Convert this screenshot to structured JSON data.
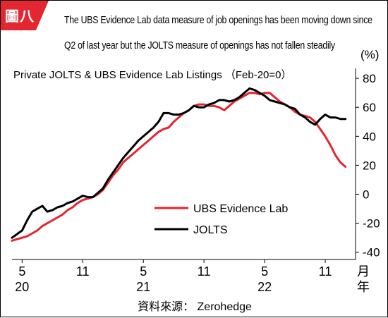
{
  "badge": {
    "label": "圖八",
    "color": "#e3262f"
  },
  "header": {
    "line1": "The UBS Evidence Lab data measure of job openings has been moving down since",
    "line2": "Q2 of last year but the JOLTS measure of openings has not fallen steadily"
  },
  "source": "資料來源： Zerohedge",
  "chart_data": {
    "type": "line",
    "title": "Private JOLTS & UBS Evidence Lab Listings （Feb-20=0）",
    "y_unit": "(%)",
    "ylim": [
      -45,
      82
    ],
    "yticks": [
      -40,
      -20,
      0,
      20,
      40,
      60,
      80
    ],
    "xlim": [
      0,
      29
    ],
    "x_tick_labels": [
      {
        "x": 0,
        "label": "5",
        "year": "20"
      },
      {
        "x": 6,
        "label": "11",
        "year": ""
      },
      {
        "x": 12,
        "label": "5",
        "year": "21"
      },
      {
        "x": 18,
        "label": "11",
        "year": ""
      },
      {
        "x": 24,
        "label": "5",
        "year": "22"
      },
      {
        "x": 30,
        "label": "11",
        "year": ""
      }
    ],
    "x_unit_label": {
      "month": "月",
      "year": "年"
    },
    "legend_position": "bottom-center",
    "series": [
      {
        "name": "UBS Evidence Lab",
        "color": "#e3262f",
        "points": [
          [
            -1,
            -32
          ],
          [
            0,
            -30
          ],
          [
            0.5,
            -29
          ],
          [
            1,
            -27
          ],
          [
            1.5,
            -25
          ],
          [
            2,
            -22
          ],
          [
            2.5,
            -20
          ],
          [
            3,
            -18
          ],
          [
            3.5,
            -16
          ],
          [
            4,
            -14
          ],
          [
            4.5,
            -11
          ],
          [
            5,
            -9
          ],
          [
            5.5,
            -6
          ],
          [
            6,
            -4
          ],
          [
            6.5,
            -3
          ],
          [
            7,
            -2
          ],
          [
            7.5,
            0
          ],
          [
            8,
            3
          ],
          [
            8.5,
            8
          ],
          [
            9,
            13
          ],
          [
            9.5,
            17
          ],
          [
            10,
            22
          ],
          [
            10.5,
            25
          ],
          [
            11,
            28
          ],
          [
            11.5,
            31
          ],
          [
            12,
            34
          ],
          [
            12.5,
            37
          ],
          [
            13,
            40
          ],
          [
            13.5,
            43
          ],
          [
            14,
            45
          ],
          [
            14.5,
            46
          ],
          [
            15,
            50
          ],
          [
            15.5,
            53
          ],
          [
            16,
            56
          ],
          [
            16.5,
            58
          ],
          [
            17,
            61
          ],
          [
            17.5,
            62
          ],
          [
            18,
            62
          ],
          [
            18.5,
            61
          ],
          [
            19,
            61
          ],
          [
            19.5,
            60
          ],
          [
            20,
            58
          ],
          [
            20.5,
            61
          ],
          [
            21,
            64
          ],
          [
            21.5,
            66
          ],
          [
            22,
            68
          ],
          [
            22.5,
            70
          ],
          [
            23,
            70
          ],
          [
            23.5,
            69
          ],
          [
            24,
            70
          ],
          [
            24.5,
            70
          ],
          [
            25,
            67
          ],
          [
            25.5,
            64
          ],
          [
            26,
            62
          ],
          [
            26.5,
            60
          ],
          [
            27,
            57
          ],
          [
            27.5,
            55
          ],
          [
            28,
            54
          ],
          [
            28.5,
            53
          ],
          [
            29,
            50
          ],
          [
            29.5,
            45
          ],
          [
            30,
            40
          ],
          [
            30.5,
            34
          ],
          [
            31,
            27
          ],
          [
            31.5,
            22
          ],
          [
            32,
            19
          ]
        ]
      },
      {
        "name": "JOLTS",
        "color": "#000000",
        "points": [
          [
            -1,
            -30
          ],
          [
            0,
            -25
          ],
          [
            0.5,
            -18
          ],
          [
            1,
            -12
          ],
          [
            1.5,
            -10
          ],
          [
            2,
            -8
          ],
          [
            2.5,
            -12
          ],
          [
            3,
            -11
          ],
          [
            3.5,
            -9
          ],
          [
            4,
            -8
          ],
          [
            4.5,
            -6
          ],
          [
            5,
            -5
          ],
          [
            5.5,
            -3
          ],
          [
            6,
            -1
          ],
          [
            6.5,
            -2
          ],
          [
            7,
            -2
          ],
          [
            7.5,
            1
          ],
          [
            8,
            4
          ],
          [
            8.5,
            10
          ],
          [
            9,
            15
          ],
          [
            9.5,
            20
          ],
          [
            10,
            25
          ],
          [
            10.5,
            29
          ],
          [
            11,
            33
          ],
          [
            11.5,
            37
          ],
          [
            12,
            40
          ],
          [
            12.5,
            43
          ],
          [
            13,
            46
          ],
          [
            13.5,
            50
          ],
          [
            14,
            56
          ],
          [
            14.5,
            56
          ],
          [
            15,
            55
          ],
          [
            15.5,
            55
          ],
          [
            16,
            56
          ],
          [
            16.5,
            58
          ],
          [
            17,
            61
          ],
          [
            17.5,
            60
          ],
          [
            18,
            60
          ],
          [
            18.5,
            62
          ],
          [
            19,
            63
          ],
          [
            19.5,
            65
          ],
          [
            20,
            65
          ],
          [
            20.5,
            64
          ],
          [
            21,
            65
          ],
          [
            21.5,
            67
          ],
          [
            22,
            70
          ],
          [
            22.5,
            73
          ],
          [
            23,
            72
          ],
          [
            23.5,
            70
          ],
          [
            24,
            68
          ],
          [
            24.5,
            65
          ],
          [
            25,
            64
          ],
          [
            25.5,
            63
          ],
          [
            26,
            62
          ],
          [
            26.5,
            60
          ],
          [
            27,
            59
          ],
          [
            27.5,
            55
          ],
          [
            28,
            53
          ],
          [
            28.5,
            50
          ],
          [
            29,
            48
          ],
          [
            29.5,
            52
          ],
          [
            30,
            55
          ],
          [
            30.5,
            53
          ],
          [
            31,
            53
          ],
          [
            31.5,
            52
          ],
          [
            32,
            52
          ]
        ]
      }
    ]
  }
}
